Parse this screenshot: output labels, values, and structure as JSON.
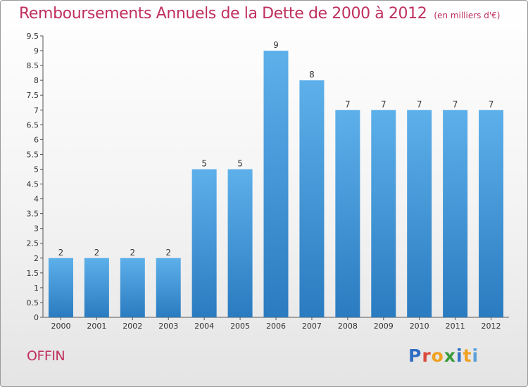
{
  "header": {
    "title": "Remboursements Annuels de la Dette de 2000 à 2012",
    "unit": "(en milliers d'€)"
  },
  "footer": {
    "commune": "OFFIN",
    "brand": "Proxiti"
  },
  "brand_letters": [
    {
      "ch": "P",
      "color": "#2f6fc4"
    },
    {
      "ch": "r",
      "color": "#d94b3a"
    },
    {
      "ch": "o",
      "color": "#f0a020"
    },
    {
      "ch": "x",
      "color": "#3a9a3c"
    },
    {
      "ch": "i",
      "color": "#2f6fc4"
    },
    {
      "ch": "t",
      "color": "#f0a020"
    },
    {
      "ch": "i",
      "color": "#5aa0d8"
    }
  ],
  "chart_data": {
    "type": "bar",
    "categories": [
      "2000",
      "2001",
      "2002",
      "2003",
      "2004",
      "2005",
      "2006",
      "2007",
      "2008",
      "2009",
      "2010",
      "2011",
      "2012"
    ],
    "values": [
      2,
      2,
      2,
      2,
      5,
      5,
      9,
      8,
      7,
      7,
      7,
      7,
      7
    ],
    "data_labels": [
      "2",
      "2",
      "2",
      "2",
      "5",
      "5",
      "9",
      "8",
      "7",
      "7",
      "7",
      "7",
      "7"
    ],
    "ylim": [
      0,
      9.5
    ],
    "yticks": [
      "0",
      "0.5",
      "1",
      "1.5",
      "2",
      "2.5",
      "3",
      "3.5",
      "4",
      "4.5",
      "5",
      "5.5",
      "6",
      "6.5",
      "7",
      "7.5",
      "8",
      "8.5",
      "9",
      "9.5"
    ],
    "grid": false,
    "bar_color": "#4a9ee0"
  }
}
